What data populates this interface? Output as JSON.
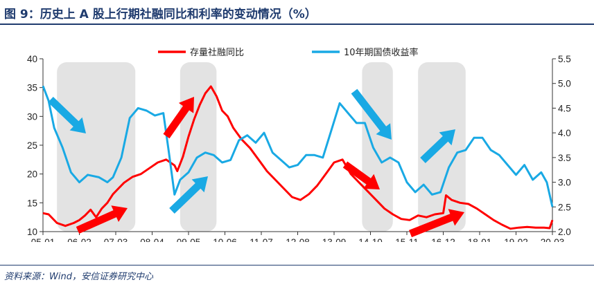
{
  "header": {
    "title": "图 9：历史上 A 股上行期社融同比和利率的变动情况（%）"
  },
  "footer": {
    "source": "资料来源：Wind，安信证券研究中心"
  },
  "chart_data": {
    "type": "line",
    "x_tick_labels": [
      "05-01",
      "06-02",
      "07-03",
      "08-04",
      "09-05",
      "10-06",
      "11-07",
      "12-08",
      "13-09",
      "14-10",
      "15-11",
      "16-12",
      "18-01",
      "19-02",
      "20-03"
    ],
    "x_range": [
      "2005-01",
      "2020-03"
    ],
    "y_left": {
      "range": [
        10,
        40
      ],
      "ticks": [
        "10",
        "15",
        "20",
        "25",
        "30",
        "35",
        "40"
      ]
    },
    "y_right": {
      "range": [
        2.0,
        5.5
      ],
      "ticks": [
        "2.0",
        "2.5",
        "3.0",
        "3.5",
        "4.0",
        "4.5",
        "5.0",
        "5.5"
      ]
    },
    "grid": false,
    "legend_position": "top",
    "series": [
      {
        "name": "存量社融同比",
        "axis": "left",
        "color": "#ff0000",
        "points": [
          [
            "2005-01",
            13.2
          ],
          [
            "2005-03",
            13.0
          ],
          [
            "2005-06",
            11.5
          ],
          [
            "2005-09",
            11.0
          ],
          [
            "2005-12",
            11.5
          ],
          [
            "2006-02",
            12.0
          ],
          [
            "2006-04",
            12.8
          ],
          [
            "2006-06",
            13.8
          ],
          [
            "2006-08",
            12.5
          ],
          [
            "2006-10",
            14.0
          ],
          [
            "2006-12",
            15.0
          ],
          [
            "2007-02",
            16.5
          ],
          [
            "2007-04",
            17.5
          ],
          [
            "2007-06",
            18.5
          ],
          [
            "2007-09",
            19.5
          ],
          [
            "2007-12",
            20.0
          ],
          [
            "2008-03",
            21.0
          ],
          [
            "2008-06",
            22.0
          ],
          [
            "2008-09",
            22.5
          ],
          [
            "2008-12",
            21.5
          ],
          [
            "2009-01",
            20.5
          ],
          [
            "2009-03",
            23.0
          ],
          [
            "2009-05",
            26.5
          ],
          [
            "2009-07",
            29.5
          ],
          [
            "2009-09",
            32.0
          ],
          [
            "2009-11",
            34.0
          ],
          [
            "2010-01",
            35.2
          ],
          [
            "2010-03",
            33.5
          ],
          [
            "2010-05",
            31.0
          ],
          [
            "2010-07",
            30.0
          ],
          [
            "2010-09",
            28.0
          ],
          [
            "2010-12",
            26.0
          ],
          [
            "2011-03",
            24.5
          ],
          [
            "2011-06",
            22.5
          ],
          [
            "2011-09",
            20.5
          ],
          [
            "2011-12",
            19.0
          ],
          [
            "2012-03",
            17.5
          ],
          [
            "2012-06",
            16.0
          ],
          [
            "2012-09",
            15.5
          ],
          [
            "2012-12",
            16.5
          ],
          [
            "2013-03",
            18.0
          ],
          [
            "2013-06",
            20.0
          ],
          [
            "2013-09",
            22.0
          ],
          [
            "2013-12",
            22.5
          ],
          [
            "2014-03",
            20.0
          ],
          [
            "2014-06",
            18.5
          ],
          [
            "2014-09",
            17.0
          ],
          [
            "2014-12",
            15.5
          ],
          [
            "2015-03",
            14.0
          ],
          [
            "2015-06",
            13.0
          ],
          [
            "2015-09",
            12.2
          ],
          [
            "2015-12",
            12.0
          ],
          [
            "2016-03",
            12.8
          ],
          [
            "2016-06",
            12.5
          ],
          [
            "2016-09",
            13.0
          ],
          [
            "2016-12",
            13.2
          ],
          [
            "2017-01",
            16.3
          ],
          [
            "2017-03",
            15.5
          ],
          [
            "2017-06",
            15.0
          ],
          [
            "2017-09",
            14.8
          ],
          [
            "2017-12",
            14.0
          ],
          [
            "2018-03",
            13.0
          ],
          [
            "2018-06",
            12.0
          ],
          [
            "2018-09",
            11.2
          ],
          [
            "2018-12",
            10.5
          ],
          [
            "2019-03",
            10.7
          ],
          [
            "2019-06",
            10.8
          ],
          [
            "2019-09",
            10.7
          ],
          [
            "2019-12",
            10.7
          ],
          [
            "2020-02",
            10.6
          ],
          [
            "2020-03",
            12.0
          ]
        ]
      },
      {
        "name": "10年期国债收益率",
        "axis": "right",
        "color": "#19a9e4",
        "points": [
          [
            "2005-01",
            4.95
          ],
          [
            "2005-03",
            4.65
          ],
          [
            "2005-05",
            4.1
          ],
          [
            "2005-08",
            3.7
          ],
          [
            "2005-11",
            3.2
          ],
          [
            "2006-02",
            3.0
          ],
          [
            "2006-05",
            3.15
          ],
          [
            "2006-09",
            3.1
          ],
          [
            "2006-12",
            3.0
          ],
          [
            "2007-02",
            3.1
          ],
          [
            "2007-05",
            3.5
          ],
          [
            "2007-08",
            4.3
          ],
          [
            "2007-11",
            4.5
          ],
          [
            "2008-02",
            4.45
          ],
          [
            "2008-05",
            4.35
          ],
          [
            "2008-08",
            4.4
          ],
          [
            "2008-10",
            3.6
          ],
          [
            "2008-12",
            2.75
          ],
          [
            "2009-02",
            3.05
          ],
          [
            "2009-05",
            3.2
          ],
          [
            "2009-08",
            3.5
          ],
          [
            "2009-11",
            3.6
          ],
          [
            "2010-02",
            3.55
          ],
          [
            "2010-05",
            3.4
          ],
          [
            "2010-08",
            3.45
          ],
          [
            "2010-11",
            3.85
          ],
          [
            "2011-02",
            3.95
          ],
          [
            "2011-05",
            3.8
          ],
          [
            "2011-08",
            4.0
          ],
          [
            "2011-11",
            3.6
          ],
          [
            "2012-02",
            3.45
          ],
          [
            "2012-05",
            3.3
          ],
          [
            "2012-08",
            3.35
          ],
          [
            "2012-11",
            3.55
          ],
          [
            "2013-02",
            3.55
          ],
          [
            "2013-05",
            3.5
          ],
          [
            "2013-08",
            4.05
          ],
          [
            "2013-11",
            4.6
          ],
          [
            "2014-02",
            4.4
          ],
          [
            "2014-05",
            4.2
          ],
          [
            "2014-08",
            4.2
          ],
          [
            "2014-11",
            3.7
          ],
          [
            "2015-02",
            3.4
          ],
          [
            "2015-05",
            3.5
          ],
          [
            "2015-08",
            3.4
          ],
          [
            "2015-11",
            3.0
          ],
          [
            "2016-02",
            2.8
          ],
          [
            "2016-05",
            2.95
          ],
          [
            "2016-08",
            2.75
          ],
          [
            "2016-11",
            2.8
          ],
          [
            "2017-02",
            3.3
          ],
          [
            "2017-05",
            3.6
          ],
          [
            "2017-08",
            3.65
          ],
          [
            "2017-11",
            3.9
          ],
          [
            "2018-02",
            3.9
          ],
          [
            "2018-05",
            3.65
          ],
          [
            "2018-08",
            3.55
          ],
          [
            "2018-11",
            3.35
          ],
          [
            "2019-02",
            3.15
          ],
          [
            "2019-05",
            3.35
          ],
          [
            "2019-08",
            3.05
          ],
          [
            "2019-11",
            3.2
          ],
          [
            "2020-01",
            3.0
          ],
          [
            "2020-03",
            2.5
          ]
        ]
      }
    ],
    "shaded_periods": [
      [
        "2005-06",
        "2007-10"
      ],
      [
        "2009-02",
        "2010-03"
      ],
      [
        "2014-07",
        "2015-06"
      ],
      [
        "2016-03",
        "2017-08"
      ]
    ],
    "annotation_arrows": [
      {
        "color": "#19a9e4",
        "direction": "down-right",
        "near": "2005-06"
      },
      {
        "color": "#ff0000",
        "direction": "up-right",
        "near": "2006-06"
      },
      {
        "color": "#ff0000",
        "direction": "up-right",
        "near": "2009-02"
      },
      {
        "color": "#19a9e4",
        "direction": "up-right",
        "near": "2009-02"
      },
      {
        "color": "#19a9e4",
        "direction": "down-right",
        "near": "2014-07"
      },
      {
        "color": "#ff0000",
        "direction": "down-right",
        "near": "2014-07"
      },
      {
        "color": "#19a9e4",
        "direction": "up-right",
        "near": "2016-08"
      },
      {
        "color": "#ff0000",
        "direction": "up-right",
        "near": "2016-06"
      }
    ]
  }
}
